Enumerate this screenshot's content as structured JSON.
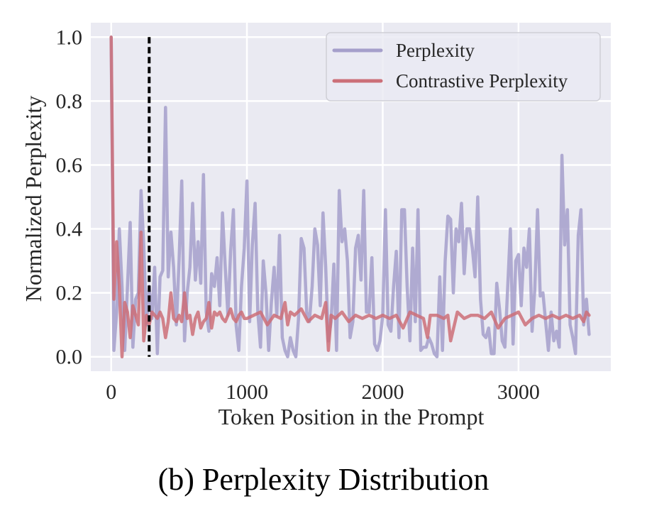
{
  "caption": "(b) Perplexity Distribution",
  "chart_data": {
    "type": "line",
    "title": "",
    "xlabel": "Token Position in the Prompt",
    "ylabel": "Normalized Perplexity",
    "xlim": [
      -150,
      3680
    ],
    "ylim": [
      -0.045,
      1.045
    ],
    "xticks": [
      0,
      1000,
      2000,
      3000
    ],
    "xtick_labels": [
      "0",
      "1000",
      "2000",
      "3000"
    ],
    "yticks": [
      0.0,
      0.2,
      0.4,
      0.6,
      0.8,
      1.0
    ],
    "ytick_labels": [
      "0.0",
      "0.2",
      "0.4",
      "0.6",
      "0.8",
      "1.0"
    ],
    "grid": true,
    "background": "#eaeaf2",
    "legend": {
      "position": "top-right",
      "entries": [
        "Perplexity",
        "Contrastive Perplexity"
      ]
    },
    "annotations": [
      {
        "type": "vertical-dashed-line",
        "x": 280,
        "y_from": 0.0,
        "y_to": 1.0,
        "color": "#000000"
      }
    ],
    "series": [
      {
        "name": "Perplexity",
        "color": "#a59fcb",
        "x": [
          0,
          20,
          40,
          60,
          80,
          100,
          120,
          140,
          160,
          180,
          200,
          220,
          240,
          260,
          280,
          300,
          320,
          340,
          360,
          380,
          400,
          420,
          440,
          460,
          480,
          500,
          520,
          540,
          560,
          580,
          600,
          620,
          640,
          660,
          680,
          700,
          720,
          740,
          760,
          780,
          800,
          820,
          840,
          860,
          880,
          900,
          920,
          940,
          960,
          980,
          1000,
          1020,
          1040,
          1060,
          1080,
          1100,
          1120,
          1140,
          1160,
          1180,
          1200,
          1220,
          1240,
          1260,
          1280,
          1300,
          1320,
          1340,
          1360,
          1380,
          1400,
          1420,
          1440,
          1460,
          1480,
          1500,
          1520,
          1540,
          1560,
          1580,
          1600,
          1620,
          1640,
          1660,
          1680,
          1700,
          1720,
          1740,
          1760,
          1780,
          1800,
          1820,
          1840,
          1860,
          1880,
          1900,
          1920,
          1940,
          1960,
          1980,
          2000,
          2020,
          2040,
          2060,
          2080,
          2100,
          2120,
          2140,
          2160,
          2180,
          2200,
          2220,
          2240,
          2260,
          2280,
          2300,
          2320,
          2340,
          2360,
          2380,
          2400,
          2420,
          2440,
          2460,
          2480,
          2500,
          2520,
          2540,
          2560,
          2580,
          2600,
          2620,
          2640,
          2660,
          2680,
          2700,
          2720,
          2740,
          2760,
          2780,
          2800,
          2820,
          2840,
          2860,
          2880,
          2900,
          2920,
          2940,
          2960,
          2980,
          3000,
          3020,
          3040,
          3060,
          3080,
          3100,
          3120,
          3140,
          3160,
          3180,
          3200,
          3220,
          3240,
          3260,
          3280,
          3300,
          3320,
          3340,
          3360,
          3380,
          3400,
          3420,
          3440,
          3460,
          3480,
          3500,
          3520
        ],
        "y": [
          1.0,
          0.02,
          0.14,
          0.4,
          0.22,
          0.02,
          0.22,
          0.42,
          0.03,
          0.18,
          0.2,
          0.52,
          0.35,
          0.1,
          0.22,
          0.12,
          0.28,
          0.01,
          0.25,
          0.27,
          0.78,
          0.25,
          0.39,
          0.28,
          0.1,
          0.3,
          0.55,
          0.05,
          0.2,
          0.28,
          0.48,
          0.24,
          0.36,
          0.23,
          0.57,
          0.14,
          0.08,
          0.26,
          0.22,
          0.31,
          0.16,
          0.45,
          0.28,
          0.13,
          0.33,
          0.46,
          0.1,
          0.02,
          0.22,
          0.34,
          0.55,
          0.11,
          0.35,
          0.48,
          0.14,
          0.03,
          0.3,
          0.2,
          0.02,
          0.17,
          0.28,
          0.13,
          0.38,
          0.06,
          0.02,
          0.0,
          0.06,
          0.02,
          0.0,
          0.12,
          0.37,
          0.34,
          0.14,
          0.11,
          0.22,
          0.4,
          0.35,
          0.16,
          0.45,
          0.28,
          0.05,
          0.11,
          0.29,
          0.02,
          0.52,
          0.36,
          0.4,
          0.3,
          0.06,
          0.11,
          0.34,
          0.38,
          0.24,
          0.52,
          0.14,
          0.14,
          0.31,
          0.04,
          0.02,
          0.05,
          0.13,
          0.46,
          0.1,
          0.08,
          0.22,
          0.33,
          0.06,
          0.46,
          0.46,
          0.22,
          0.05,
          0.34,
          0.11,
          0.46,
          0.02,
          0.03,
          0.03,
          0.06,
          0.04,
          0.01,
          0.0,
          0.25,
          0.02,
          0.3,
          0.44,
          0.43,
          0.2,
          0.4,
          0.36,
          0.48,
          0.26,
          0.4,
          0.4,
          0.34,
          0.25,
          0.5,
          0.18,
          0.07,
          0.06,
          0.09,
          0.01,
          0.01,
          0.23,
          0.15,
          0.05,
          0.03,
          0.21,
          0.4,
          0.04,
          0.3,
          0.32,
          0.16,
          0.34,
          0.28,
          0.4,
          0.08,
          0.21,
          0.46,
          0.19,
          0.2,
          0.11,
          0.02,
          0.14,
          0.05,
          0.08,
          0.03,
          0.63,
          0.35,
          0.46,
          0.1,
          0.06,
          0.01,
          0.38,
          0.46,
          0.1,
          0.18,
          0.07
        ]
      },
      {
        "name": "Contrastive Perplexity",
        "color": "#cc6f78",
        "x": [
          0,
          20,
          40,
          60,
          80,
          100,
          120,
          140,
          160,
          180,
          200,
          220,
          240,
          260,
          280,
          300,
          320,
          340,
          360,
          380,
          400,
          420,
          440,
          460,
          480,
          500,
          520,
          540,
          560,
          580,
          600,
          620,
          640,
          660,
          680,
          700,
          720,
          740,
          760,
          780,
          800,
          820,
          840,
          860,
          880,
          900,
          920,
          940,
          960,
          980,
          1000,
          1050,
          1100,
          1150,
          1200,
          1250,
          1280,
          1300,
          1320,
          1350,
          1400,
          1450,
          1500,
          1550,
          1580,
          1600,
          1620,
          1650,
          1700,
          1750,
          1800,
          1850,
          1900,
          1950,
          2000,
          2050,
          2100,
          2150,
          2200,
          2250,
          2300,
          2330,
          2350,
          2400,
          2450,
          2480,
          2500,
          2550,
          2600,
          2650,
          2700,
          2750,
          2800,
          2850,
          2900,
          2950,
          3000,
          3050,
          3100,
          3150,
          3200,
          3250,
          3300,
          3350,
          3400,
          3450,
          3480,
          3500,
          3520
        ],
        "y": [
          1.0,
          0.18,
          0.36,
          0.22,
          0.0,
          0.17,
          0.14,
          0.06,
          0.16,
          0.13,
          0.1,
          0.39,
          0.05,
          0.13,
          0.1,
          0.14,
          0.13,
          0.12,
          0.14,
          0.12,
          0.06,
          0.11,
          0.2,
          0.12,
          0.11,
          0.13,
          0.11,
          0.2,
          0.12,
          0.13,
          0.07,
          0.12,
          0.14,
          0.09,
          0.11,
          0.12,
          0.17,
          0.09,
          0.14,
          0.13,
          0.14,
          0.12,
          0.11,
          0.13,
          0.15,
          0.12,
          0.11,
          0.13,
          0.14,
          0.12,
          0.12,
          0.13,
          0.14,
          0.1,
          0.13,
          0.12,
          0.17,
          0.1,
          0.14,
          0.13,
          0.15,
          0.11,
          0.13,
          0.12,
          0.17,
          0.02,
          0.13,
          0.12,
          0.14,
          0.11,
          0.13,
          0.12,
          0.13,
          0.12,
          0.13,
          0.12,
          0.13,
          0.09,
          0.14,
          0.13,
          0.12,
          0.06,
          0.13,
          0.13,
          0.12,
          0.13,
          0.05,
          0.14,
          0.12,
          0.13,
          0.13,
          0.12,
          0.14,
          0.09,
          0.12,
          0.13,
          0.14,
          0.1,
          0.12,
          0.13,
          0.12,
          0.13,
          0.12,
          0.13,
          0.12,
          0.13,
          0.11,
          0.14,
          0.13
        ]
      }
    ]
  }
}
